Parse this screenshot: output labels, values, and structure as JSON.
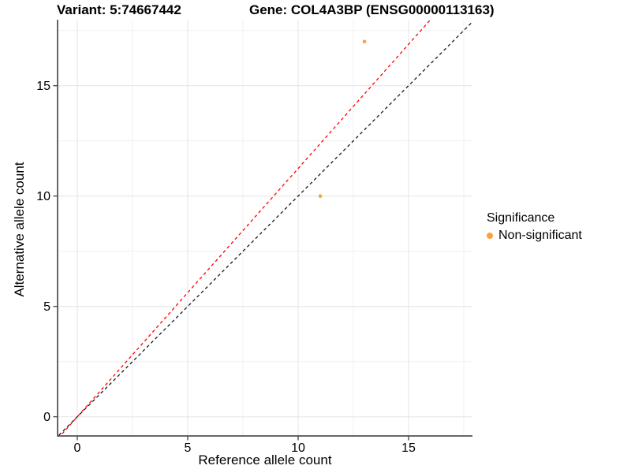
{
  "chart_data": {
    "type": "scatter",
    "title_left": "Variant: 5:74667442",
    "title_right": "Gene: COL4A3BP (ENSG00000113163)",
    "xlabel": "Reference allele count",
    "ylabel": "Alternative allele count",
    "xlim": [
      -0.9,
      17.9
    ],
    "ylim": [
      -0.9,
      18.0
    ],
    "xticks": [
      0,
      5,
      10,
      15
    ],
    "yticks": [
      0,
      5,
      10,
      15
    ],
    "minor_xticks": [
      2.5,
      7.5,
      12.5,
      17.5
    ],
    "minor_yticks": [
      2.5,
      7.5,
      12.5,
      17.5
    ],
    "grid": true,
    "points": [
      {
        "x": 11,
        "y": 10,
        "series": "Non-significant"
      },
      {
        "x": 13,
        "y": 17,
        "series": "Non-significant"
      }
    ],
    "lines": [
      {
        "name": "identity-line",
        "slope": 1.0,
        "intercept": 0,
        "color": "#1a1a1a",
        "dash": "4 3.5"
      },
      {
        "name": "observed-ratio-line",
        "slope": 1.125,
        "intercept": 0,
        "color": "#ff0000",
        "dash": "4 3.5"
      }
    ],
    "legend": {
      "title": "Significance",
      "position": "right",
      "items": [
        {
          "label": "Non-significant",
          "color": "#f9a23c"
        }
      ]
    },
    "colors": {
      "point": "#f9a23c",
      "grid_major": "#e4e4e4",
      "grid_minor": "#f1f1f1",
      "axis_line": "#333333",
      "tick_mark": "#333333",
      "text": "#000000",
      "background": "#ffffff"
    }
  }
}
